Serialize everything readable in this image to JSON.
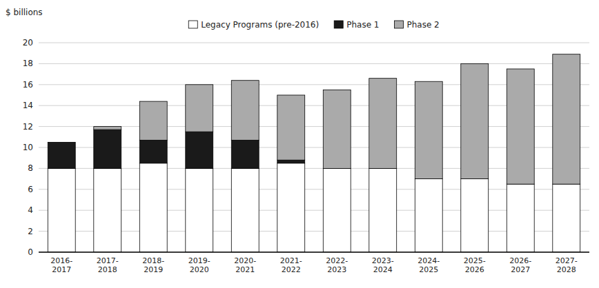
{
  "chart_data": {
    "type": "bar",
    "stacked": true,
    "y_label": "$ billions",
    "categories": [
      "2016-\n2017",
      "2017-\n2018",
      "2018-\n2019",
      "2019-\n2020",
      "2020-\n2021",
      "2021-\n2022",
      "2022-\n2023",
      "2023-\n2024",
      "2024-\n2025",
      "2025-\n2026",
      "2026-\n2027",
      "2027-\n2028"
    ],
    "series": [
      {
        "name": "Legacy Programs (pre-2016)",
        "color": "#ffffff",
        "values": [
          8.0,
          8.0,
          8.5,
          8.0,
          8.0,
          8.5,
          8.0,
          8.0,
          7.0,
          7.0,
          6.5,
          6.5
        ]
      },
      {
        "name": "Phase 1",
        "color": "#1a1a1a",
        "values": [
          2.5,
          3.7,
          2.2,
          3.5,
          2.7,
          0.3,
          0.0,
          0.0,
          0.0,
          0.0,
          0.0,
          0.0
        ]
      },
      {
        "name": "Phase 2",
        "color": "#aaaaaa",
        "values": [
          0.0,
          0.3,
          3.7,
          4.5,
          5.7,
          6.2,
          7.5,
          8.6,
          9.3,
          11.0,
          11.0,
          12.4
        ]
      }
    ],
    "ylim": [
      0,
      20
    ],
    "yticks": [
      0,
      2,
      4,
      6,
      8,
      10,
      12,
      14,
      16,
      18,
      20
    ],
    "grid": true,
    "legend": "top"
  }
}
